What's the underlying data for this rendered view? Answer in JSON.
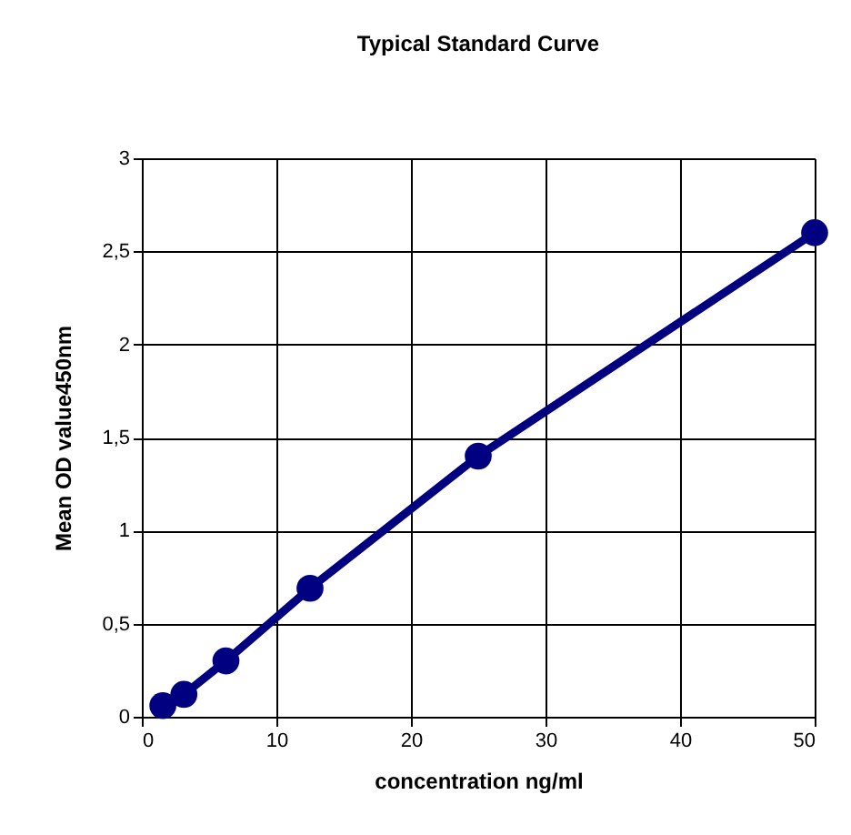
{
  "chart_data": {
    "type": "line",
    "title": "Typical Standard Curve",
    "xlabel": "concentration ng/ml",
    "ylabel": "Mean OD value450nm",
    "x": [
      1.5625,
      3.125,
      6.25,
      12.5,
      25,
      50
    ],
    "series": [
      {
        "color": "#000080",
        "values": [
          0.06,
          0.12,
          0.3,
          0.69,
          1.4,
          2.6
        ]
      }
    ],
    "xlim": [
      0,
      50
    ],
    "xticks": [
      0,
      10,
      20,
      30,
      40,
      50
    ],
    "ylim": [
      0,
      3
    ],
    "yticks": [
      0,
      {
        "value": 0.5,
        "label": "0,5"
      },
      1,
      {
        "value": 1.5,
        "label": "1,5"
      },
      2,
      {
        "value": 2.5,
        "label": "2,5"
      },
      3
    ],
    "grid": true,
    "marker": "circle",
    "line_style": "solid",
    "legend": false
  }
}
